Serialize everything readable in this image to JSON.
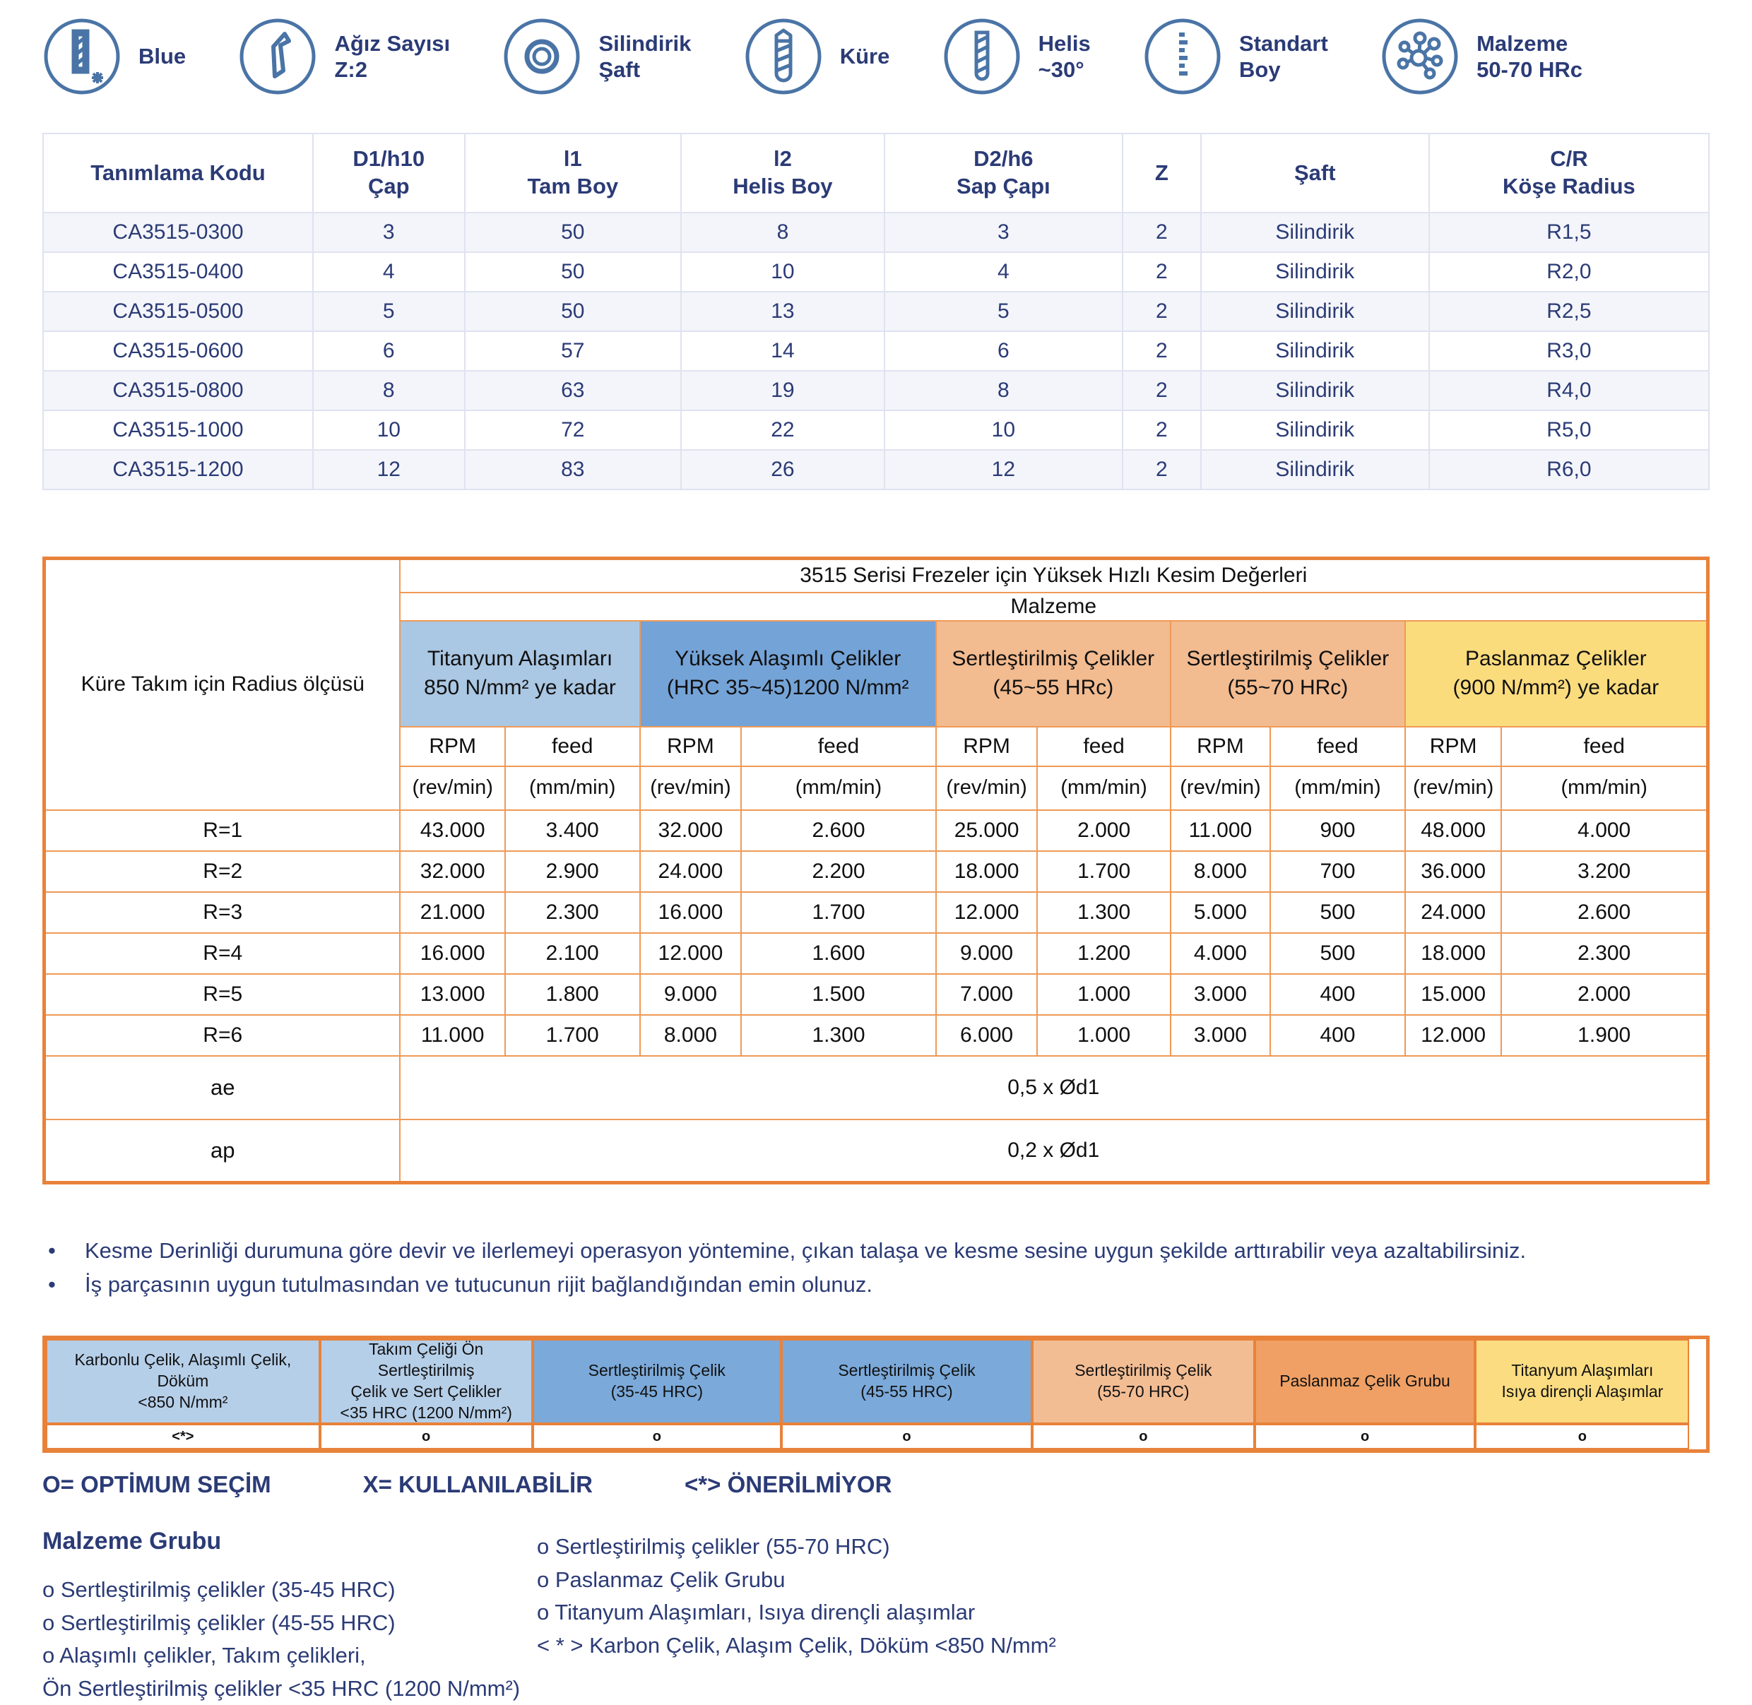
{
  "features": [
    {
      "icon": "blue-coating-icon",
      "label": "Blue"
    },
    {
      "icon": "flute-count-icon",
      "label": "Ağız Sayısı\nZ:2"
    },
    {
      "icon": "cylindrical-shank-icon",
      "label": "Silindirik\nŞaft"
    },
    {
      "icon": "ball-nose-icon",
      "label": "Küre"
    },
    {
      "icon": "helix-angle-icon",
      "label": "Helis\n~30°"
    },
    {
      "icon": "standard-length-icon",
      "label": "Standart\nBoy"
    },
    {
      "icon": "material-hardness-icon",
      "label": "Malzeme\n50-70 HRc"
    }
  ],
  "product_table": {
    "headers": [
      "Tanımlama Kodu",
      "D1/h10\nÇap",
      "l1\nTam Boy",
      "l2\nHelis Boy",
      "D2/h6\nSap Çapı",
      "Z",
      "Şaft",
      "C/R\nKöşe Radius"
    ],
    "rows": [
      [
        "CA3515-0300",
        "3",
        "50",
        "8",
        "3",
        "2",
        "Silindirik",
        "R1,5"
      ],
      [
        "CA3515-0400",
        "4",
        "50",
        "10",
        "4",
        "2",
        "Silindirik",
        "R2,0"
      ],
      [
        "CA3515-0500",
        "5",
        "50",
        "13",
        "5",
        "2",
        "Silindirik",
        "R2,5"
      ],
      [
        "CA3515-0600",
        "6",
        "57",
        "14",
        "6",
        "2",
        "Silindirik",
        "R3,0"
      ],
      [
        "CA3515-0800",
        "8",
        "63",
        "19",
        "8",
        "2",
        "Silindirik",
        "R4,0"
      ],
      [
        "CA3515-1000",
        "10",
        "72",
        "22",
        "10",
        "2",
        "Silindirik",
        "R5,0"
      ],
      [
        "CA3515-1200",
        "12",
        "83",
        "26",
        "12",
        "2",
        "Silindirik",
        "R6,0"
      ]
    ]
  },
  "speed_table": {
    "title": "3515 Serisi Frezeler için Yüksek Hızlı Kesim Değerleri",
    "malzeme_label": "Malzeme",
    "row_header": "Küre Takım için Radius ölçüsü",
    "groups": [
      {
        "name": "Titanyum Alaşımları\n850 N/mm² ye kadar",
        "color": "#aac7e3"
      },
      {
        "name": "Yüksek Alaşımlı Çelikler\n(HRC 35~45)1200 N/mm²",
        "color": "#74a3d7"
      },
      {
        "name": "Sertleştirilmiş Çelikler\n(45~55 HRc)",
        "color": "#f2bb90"
      },
      {
        "name": "Sertleştirilmiş Çelikler\n(55~70 HRc)",
        "color": "#f2bb90"
      },
      {
        "name": "Paslanmaz Çelikler\n(900 N/mm²) ye kadar",
        "color": "#fbdc7d"
      }
    ],
    "col_labels": {
      "rpm": "RPM",
      "feed": "feed",
      "rpm_unit": "(rev/min)",
      "feed_unit": "(mm/min)"
    },
    "rows": [
      {
        "label": "R=1",
        "values": [
          "43.000",
          "3.400",
          "32.000",
          "2.600",
          "25.000",
          "2.000",
          "11.000",
          "900",
          "48.000",
          "4.000"
        ]
      },
      {
        "label": "R=2",
        "values": [
          "32.000",
          "2.900",
          "24.000",
          "2.200",
          "18.000",
          "1.700",
          "8.000",
          "700",
          "36.000",
          "3.200"
        ]
      },
      {
        "label": "R=3",
        "values": [
          "21.000",
          "2.300",
          "16.000",
          "1.700",
          "12.000",
          "1.300",
          "5.000",
          "500",
          "24.000",
          "2.600"
        ]
      },
      {
        "label": "R=4",
        "values": [
          "16.000",
          "2.100",
          "12.000",
          "1.600",
          "9.000",
          "1.200",
          "4.000",
          "500",
          "18.000",
          "2.300"
        ]
      },
      {
        "label": "R=5",
        "values": [
          "13.000",
          "1.800",
          "9.000",
          "1.500",
          "7.000",
          "1.000",
          "3.000",
          "400",
          "15.000",
          "2.000"
        ]
      },
      {
        "label": "R=6",
        "values": [
          "11.000",
          "1.700",
          "8.000",
          "1.300",
          "6.000",
          "1.000",
          "3.000",
          "400",
          "12.000",
          "1.900"
        ]
      }
    ],
    "footer_rows": [
      {
        "label": "ae",
        "value": "0,5 x Ød1"
      },
      {
        "label": "ap",
        "value": "0,2 x Ød1"
      }
    ]
  },
  "notes": [
    "Kesme Derinliği durumuna göre devir ve ilerlemeyi operasyon yöntemine, çıkan talaşa ve kesme sesine uygun şekilde arttırabilir veya azaltabilirsiniz.",
    "İş parçasının uygun tutulmasından ve tutucunun rijit bağlandığından emin olunuz."
  ],
  "material_bar": [
    {
      "text": "Karbonlu Çelik, Alaşımlı Çelik, Döküm\n<850 N/mm²",
      "symbol": "<*>",
      "color": "#b6cfe9"
    },
    {
      "text": "Takım Çeliği Ön Sertleştirilmiş\nÇelik ve Sert Çelikler\n<35 HRC (1200 N/mm²)",
      "symbol": "o",
      "color": "#b6cfe9"
    },
    {
      "text": "Sertleştirilmiş Çelik\n(35-45 HRC)",
      "symbol": "o",
      "color": "#7ba9d9"
    },
    {
      "text": "Sertleştirilmiş Çelik\n(45-55 HRC)",
      "symbol": "o",
      "color": "#7ba9d9"
    },
    {
      "text": "Sertleştirilmiş Çelik\n(55-70 HRC)",
      "symbol": "o",
      "color": "#f3bd94"
    },
    {
      "text": "Paslanmaz Çelik Grubu",
      "symbol": "o",
      "color": "#f0a064"
    },
    {
      "text": "Titanyum Alaşımları\nIsıya dirençli Alaşımlar",
      "symbol": "o",
      "color": "#fbdc80"
    }
  ],
  "legend": {
    "items": [
      "O= OPTİMUM SEÇİM",
      "X= KULLANILABİLİR",
      "<*> ÖNERİLMİYOR"
    ]
  },
  "material_group": {
    "title": "Malzeme Grubu",
    "left": [
      "o Sertleştirilmiş çelikler (35-45 HRC)",
      "o Sertleştirilmiş çelikler (45-55 HRC)",
      "o Alaşımlı çelikler, Takım çelikleri,",
      "Ön Sertleştirilmiş çelikler <35 HRC (1200 N/mm²)"
    ],
    "right": [
      "o Sertleştirilmiş çelikler (55-70 HRC)",
      "o Paslanmaz Çelik Grubu",
      "o Titanyum Alaşımları, Isıya dirençli alaşımlar",
      "< * > Karbon Çelik, Alaşım Çelik, Döküm <850 N/mm²"
    ]
  },
  "colors": {
    "navy": "#2b3b76",
    "icon_blue": "#4a74a6",
    "table_orange": "#e8823a"
  }
}
